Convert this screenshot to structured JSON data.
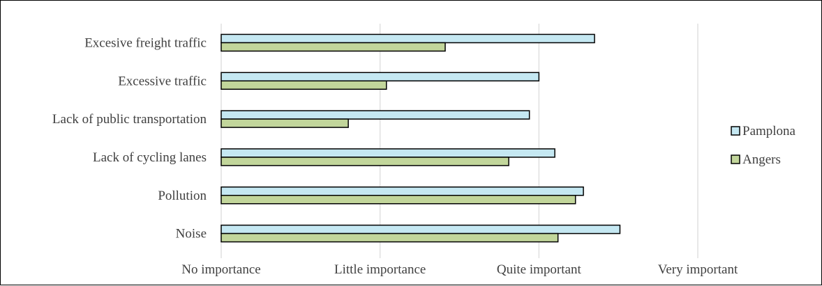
{
  "chart_data": {
    "type": "bar",
    "orientation": "horizontal",
    "categories": [
      "Excesive freight traffic",
      "Excessive traffic",
      "Lack of public transportation",
      "Lack of cycling lanes",
      "Pollution",
      "Noise"
    ],
    "series": [
      {
        "name": "Pamplona",
        "color": "#c5e8f2",
        "values": [
          2.35,
          2.0,
          1.94,
          2.1,
          2.28,
          2.51
        ]
      },
      {
        "name": "Angers",
        "color": "#c2d69b",
        "values": [
          1.41,
          1.04,
          0.8,
          1.81,
          2.23,
          2.12
        ]
      }
    ],
    "xlim": [
      0,
      3
    ],
    "xticks": [
      {
        "value": 0,
        "label": "No importance"
      },
      {
        "value": 1,
        "label": "Little importance"
      },
      {
        "value": 2,
        "label": "Quite important"
      },
      {
        "value": 3,
        "label": "Very important"
      }
    ],
    "grid": true,
    "legend_position": "right",
    "title": "",
    "xlabel": "",
    "ylabel": "",
    "bar_outline_color": "#000000",
    "gridline_color": "#d9d9d9"
  }
}
